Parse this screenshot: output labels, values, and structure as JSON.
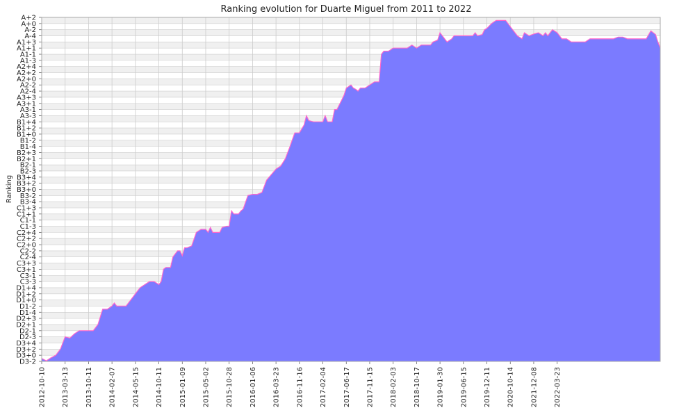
{
  "chart_data": {
    "type": "area",
    "title": "Ranking evolution for Duarte Miguel from 2011 to 2022",
    "ylabel": "Ranking",
    "xlabel": "",
    "grid": true,
    "colors": {
      "fill": "#7b7bff",
      "line": "#ff66cc",
      "band": "#f0f0f0",
      "gridline": "#cccccc"
    },
    "y_levels": [
      "D3-2",
      "D3+0",
      "D3+2",
      "D3+4",
      "D2-3",
      "D2-1",
      "D2+1",
      "D2+3",
      "D1-4",
      "D1-2",
      "D1+0",
      "D1+2",
      "D1+4",
      "C3-3",
      "C3-1",
      "C3+1",
      "C3+3",
      "C2-4",
      "C2-2",
      "C2+0",
      "C2+2",
      "C2+4",
      "C1-3",
      "C1-1",
      "C1+1",
      "C1+3",
      "B3-4",
      "B3-2",
      "B3+0",
      "B3+2",
      "B3+4",
      "B2-3",
      "B2-1",
      "B2+1",
      "B2+3",
      "B1-4",
      "B1-2",
      "B1+0",
      "B1+2",
      "B1+4",
      "A3-3",
      "A3-1",
      "A3+1",
      "A3+3",
      "A2-4",
      "A2-2",
      "A2+0",
      "A2+2",
      "A2+4",
      "A1-3",
      "A1-1",
      "A1+1",
      "A1+3",
      "A-4",
      "A-2",
      "A+0",
      "A+2"
    ],
    "x_tick_labels": [
      "2012-10-10",
      "2013-03-13",
      "2013-10-11",
      "2014-02-07",
      "2014-05-15",
      "2014-10-11",
      "2015-01-09",
      "2015-05-02",
      "2015-10-28",
      "2016-01-06",
      "2016-03-23",
      "2016-11-16",
      "2017-02-04",
      "2017-06-17",
      "2017-11-15",
      "2018-02-03",
      "2018-10-17",
      "2019-01-30",
      "2019-06-15",
      "2019-12-11",
      "2020-10-14",
      "2021-12-08",
      "2022-03-23"
    ],
    "series": [
      {
        "values": [
          [
            0.0,
            0.5
          ],
          [
            0.2,
            0.1
          ],
          [
            0.4,
            0.6
          ],
          [
            0.6,
            1.0
          ],
          [
            0.8,
            2.0
          ],
          [
            1.0,
            4.0
          ],
          [
            1.2,
            3.8
          ],
          [
            1.4,
            4.5
          ],
          [
            1.6,
            5.0
          ],
          [
            1.8,
            5.0
          ],
          [
            2.0,
            5.0
          ],
          [
            2.2,
            5.0
          ],
          [
            2.4,
            6.0
          ],
          [
            2.6,
            8.5
          ],
          [
            2.8,
            8.5
          ],
          [
            3.0,
            9.0
          ],
          [
            3.1,
            9.5
          ],
          [
            3.2,
            9.0
          ],
          [
            3.4,
            9.0
          ],
          [
            3.6,
            9.0
          ],
          [
            3.8,
            10.0
          ],
          [
            4.0,
            11.0
          ],
          [
            4.2,
            12.0
          ],
          [
            4.4,
            12.5
          ],
          [
            4.6,
            13.0
          ],
          [
            4.8,
            13.0
          ],
          [
            5.0,
            12.5
          ],
          [
            5.1,
            13.0
          ],
          [
            5.2,
            15.0
          ],
          [
            5.3,
            15.3
          ],
          [
            5.5,
            15.3
          ],
          [
            5.6,
            17.0
          ],
          [
            5.7,
            17.5
          ],
          [
            5.8,
            18.0
          ],
          [
            5.9,
            18.0
          ],
          [
            6.0,
            17.2
          ],
          [
            6.1,
            18.5
          ],
          [
            6.2,
            18.5
          ],
          [
            6.4,
            18.8
          ],
          [
            6.6,
            21.0
          ],
          [
            6.8,
            21.5
          ],
          [
            7.0,
            21.5
          ],
          [
            7.1,
            21.0
          ],
          [
            7.2,
            21.8
          ],
          [
            7.3,
            21.0
          ],
          [
            7.6,
            21.0
          ],
          [
            7.7,
            21.8
          ],
          [
            7.9,
            22.0
          ],
          [
            8.0,
            22.0
          ],
          [
            8.1,
            24.5
          ],
          [
            8.2,
            24.0
          ],
          [
            8.4,
            24.0
          ],
          [
            8.5,
            24.5
          ],
          [
            8.6,
            24.8
          ],
          [
            8.8,
            27.0
          ],
          [
            9.0,
            27.2
          ],
          [
            9.2,
            27.2
          ],
          [
            9.4,
            27.5
          ],
          [
            9.6,
            29.5
          ],
          [
            10.0,
            31.3
          ],
          [
            10.2,
            31.8
          ],
          [
            10.4,
            33.0
          ],
          [
            10.6,
            35.0
          ],
          [
            10.8,
            37.2
          ],
          [
            11.0,
            37.2
          ],
          [
            11.2,
            38.5
          ],
          [
            11.3,
            40.0
          ],
          [
            11.4,
            39.2
          ],
          [
            11.6,
            39.0
          ],
          [
            11.8,
            39.0
          ],
          [
            12.0,
            39.0
          ],
          [
            12.1,
            40.0
          ],
          [
            12.2,
            39.0
          ],
          [
            12.4,
            39.0
          ],
          [
            12.5,
            41.0
          ],
          [
            12.6,
            41.0
          ],
          [
            12.8,
            42.5
          ],
          [
            12.9,
            43.3
          ],
          [
            13.0,
            44.5
          ],
          [
            13.2,
            45.0
          ],
          [
            13.3,
            44.5
          ],
          [
            13.4,
            44.3
          ],
          [
            13.5,
            44.0
          ],
          [
            13.6,
            44.5
          ],
          [
            13.8,
            44.5
          ],
          [
            14.0,
            45.0
          ],
          [
            14.2,
            45.5
          ],
          [
            14.4,
            45.5
          ],
          [
            14.5,
            50.0
          ],
          [
            14.6,
            50.5
          ],
          [
            14.8,
            50.5
          ],
          [
            15.0,
            51.0
          ],
          [
            15.2,
            51.0
          ],
          [
            15.4,
            51.0
          ],
          [
            15.6,
            51.0
          ],
          [
            15.8,
            51.5
          ],
          [
            16.0,
            51.0
          ],
          [
            16.2,
            51.5
          ],
          [
            16.4,
            51.5
          ],
          [
            16.6,
            51.5
          ],
          [
            16.7,
            52.0
          ],
          [
            16.9,
            52.3
          ],
          [
            17.0,
            53.5
          ],
          [
            17.1,
            53.0
          ],
          [
            17.3,
            52.0
          ],
          [
            17.5,
            52.5
          ],
          [
            17.6,
            53.0
          ],
          [
            18.0,
            53.0
          ],
          [
            18.2,
            53.0
          ],
          [
            18.4,
            53.0
          ],
          [
            18.5,
            53.5
          ],
          [
            18.6,
            53.0
          ],
          [
            18.8,
            53.2
          ],
          [
            18.9,
            54.0
          ],
          [
            19.0,
            54.2
          ],
          [
            19.2,
            55.0
          ],
          [
            19.4,
            55.5
          ],
          [
            19.6,
            55.5
          ],
          [
            19.8,
            55.5
          ],
          [
            20.0,
            54.5
          ],
          [
            20.1,
            54.0
          ],
          [
            20.3,
            53.0
          ],
          [
            20.5,
            52.5
          ],
          [
            20.6,
            53.5
          ],
          [
            20.8,
            53.0
          ],
          [
            21.0,
            53.3
          ],
          [
            21.2,
            53.5
          ],
          [
            21.4,
            53.0
          ],
          [
            21.5,
            53.5
          ],
          [
            21.6,
            53.0
          ],
          [
            21.8,
            54.0
          ],
          [
            22.0,
            53.5
          ],
          [
            22.2,
            52.5
          ],
          [
            22.4,
            52.5
          ],
          [
            22.6,
            52.0
          ],
          [
            22.8,
            52.0
          ],
          [
            23.0,
            52.0
          ],
          [
            23.2,
            52.0
          ],
          [
            23.4,
            52.5
          ],
          [
            23.6,
            52.5
          ],
          [
            23.8,
            52.5
          ],
          [
            24.0,
            52.5
          ],
          [
            24.2,
            52.5
          ],
          [
            24.4,
            52.5
          ],
          [
            24.6,
            52.8
          ],
          [
            24.8,
            52.8
          ],
          [
            25.0,
            52.5
          ],
          [
            25.2,
            52.5
          ],
          [
            25.4,
            52.5
          ],
          [
            25.6,
            52.5
          ],
          [
            25.8,
            52.5
          ],
          [
            26.0,
            53.8
          ],
          [
            26.2,
            53.2
          ],
          [
            26.3,
            52.0
          ],
          [
            26.4,
            51.0
          ]
        ]
      }
    ],
    "x_tick_positions": [
      0,
      1,
      2,
      3,
      4,
      5,
      6,
      7,
      8,
      9,
      10,
      11,
      12,
      13,
      14,
      15,
      16,
      17,
      18,
      19,
      20,
      21,
      22
    ],
    "xlim": [
      0,
      26.4
    ],
    "ylim": [
      0,
      56
    ]
  }
}
